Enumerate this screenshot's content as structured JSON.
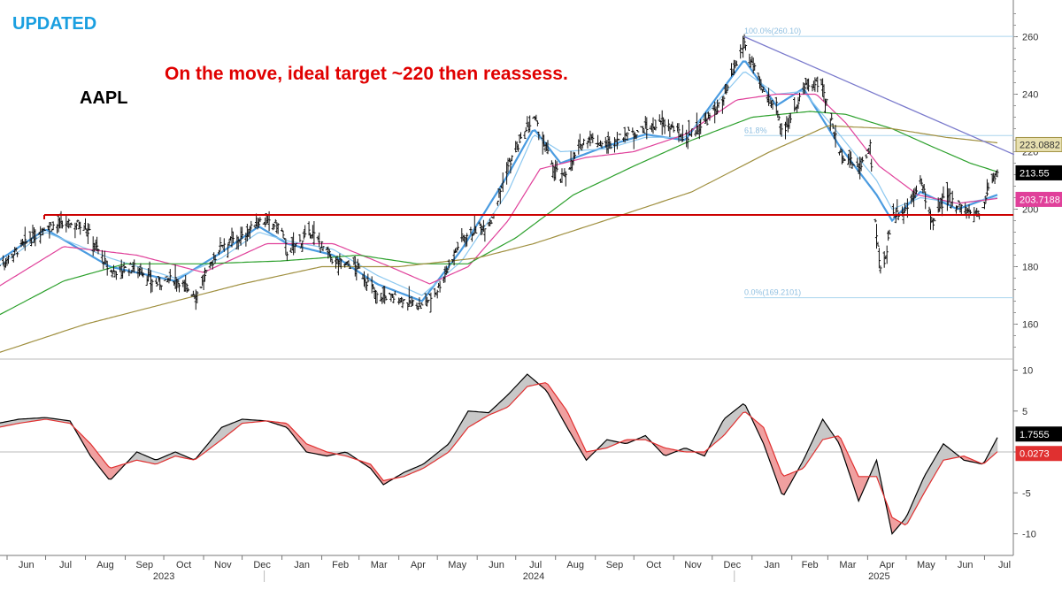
{
  "header": {
    "badge": "UPDATED",
    "ticker": "AAPL",
    "annotation": "On the move, ideal target ~220 then reassess."
  },
  "chart_data": [
    {
      "type": "line",
      "title": "AAPL",
      "x_axis": {
        "type": "date",
        "month_ticks": [
          {
            "date": "2023-06-01",
            "label": "Jun"
          },
          {
            "date": "2023-07-01",
            "label": "Jul"
          },
          {
            "date": "2023-08-01",
            "label": "Aug"
          },
          {
            "date": "2023-09-01",
            "label": "Sep"
          },
          {
            "date": "2023-10-01",
            "label": "Oct"
          },
          {
            "date": "2023-11-01",
            "label": "Nov"
          },
          {
            "date": "2023-12-01",
            "label": "Dec"
          },
          {
            "date": "2024-01-01",
            "label": "Jan"
          },
          {
            "date": "2024-02-01",
            "label": "Feb"
          },
          {
            "date": "2024-03-01",
            "label": "Mar"
          },
          {
            "date": "2024-04-01",
            "label": "Apr"
          },
          {
            "date": "2024-05-01",
            "label": "May"
          },
          {
            "date": "2024-06-01",
            "label": "Jun"
          },
          {
            "date": "2024-07-01",
            "label": "Jul"
          },
          {
            "date": "2024-08-01",
            "label": "Aug"
          },
          {
            "date": "2024-09-01",
            "label": "Sep"
          },
          {
            "date": "2024-10-01",
            "label": "Oct"
          },
          {
            "date": "2024-11-01",
            "label": "Nov"
          },
          {
            "date": "2024-12-01",
            "label": "Dec"
          },
          {
            "date": "2025-01-01",
            "label": "Jan"
          },
          {
            "date": "2025-02-01",
            "label": "Feb"
          },
          {
            "date": "2025-03-01",
            "label": "Mar"
          },
          {
            "date": "2025-04-01",
            "label": "Apr"
          },
          {
            "date": "2025-05-01",
            "label": "May"
          },
          {
            "date": "2025-06-01",
            "label": "Jun"
          },
          {
            "date": "2025-07-01",
            "label": "Jul"
          }
        ],
        "year_labels": [
          {
            "date": "2023-10-01",
            "label": "2023"
          },
          {
            "date": "2024-07-15",
            "label": "2024"
          },
          {
            "date": "2025-04-10",
            "label": "2025"
          }
        ]
      },
      "y_axis": {
        "ticks": [
          160,
          180,
          200,
          220,
          240,
          260
        ],
        "ylim": [
          150,
          272
        ]
      },
      "levels": [
        {
          "name": "horizontal support",
          "value": 198,
          "color": "#cc0000"
        }
      ],
      "fib_levels": [
        {
          "label": "100.0%(260.10)",
          "value": 260.1,
          "from": "2024-12-26"
        },
        {
          "label": "61.8%",
          "value": 225.6,
          "from": "2024-12-26"
        },
        {
          "label": "0.0%(169.2101)",
          "value": 169.21,
          "from": "2024-12-26"
        }
      ],
      "trendline": {
        "from": {
          "date": "2024-12-26",
          "value": 260
        },
        "to": {
          "date": "2025-07-24",
          "value": 219
        },
        "color": "#7a7acc"
      },
      "price": {
        "dates": [
          "2023-05-25",
          "2023-06-15",
          "2023-07-01",
          "2023-07-31",
          "2023-08-20",
          "2023-09-10",
          "2023-09-25",
          "2023-10-10",
          "2023-10-26",
          "2023-11-15",
          "2023-12-01",
          "2023-12-14",
          "2023-12-31",
          "2024-01-05",
          "2024-01-24",
          "2024-02-10",
          "2024-02-28",
          "2024-03-15",
          "2024-04-01",
          "2024-04-19",
          "2024-05-01",
          "2024-05-20",
          "2024-06-05",
          "2024-06-12",
          "2024-06-25",
          "2024-07-15",
          "2024-07-25",
          "2024-08-05",
          "2024-08-25",
          "2024-09-10",
          "2024-09-25",
          "2024-10-10",
          "2024-10-25",
          "2024-11-10",
          "2024-11-25",
          "2024-12-10",
          "2024-12-26",
          "2025-01-05",
          "2025-01-10",
          "2025-01-20",
          "2025-01-25",
          "2025-02-10",
          "2025-02-24",
          "2025-03-10",
          "2025-03-25",
          "2025-04-03",
          "2025-04-08",
          "2025-04-12",
          "2025-04-20",
          "2025-05-01",
          "2025-05-12",
          "2025-05-22",
          "2025-06-01",
          "2025-06-10",
          "2025-06-20",
          "2025-06-30",
          "2025-07-04",
          "2025-07-11"
        ],
        "values": [
          180,
          188,
          194,
          195,
          178,
          180,
          174,
          176,
          170,
          188,
          190,
          196,
          194,
          185,
          192,
          182,
          180,
          170,
          169,
          166,
          172,
          190,
          194,
          196,
          215,
          232,
          220,
          210,
          225,
          222,
          226,
          228,
          230,
          225,
          230,
          238,
          258,
          246,
          240,
          236,
          226,
          242,
          244,
          220,
          214,
          222,
          190,
          175,
          198,
          200,
          210,
          195,
          205,
          202,
          198,
          200,
          208,
          213.55
        ]
      },
      "series": [
        {
          "name": "",
          "color": "#4a9be0",
          "last_value": null,
          "dates": [
            "2023-05-25",
            "2023-07-01",
            "2023-08-20",
            "2023-10-10",
            "2023-11-15",
            "2023-12-14",
            "2024-01-05",
            "2024-02-10",
            "2024-03-15",
            "2024-04-19",
            "2024-05-20",
            "2024-06-25",
            "2024-07-15",
            "2024-08-05",
            "2024-09-10",
            "2024-10-10",
            "2024-11-10",
            "2024-12-26",
            "2025-01-20",
            "2025-02-10",
            "2025-03-10",
            "2025-04-08",
            "2025-04-20",
            "2025-05-12",
            "2025-06-10",
            "2025-07-11"
          ],
          "values": [
            182,
            193,
            180,
            175,
            185,
            194,
            188,
            184,
            174,
            168,
            186,
            212,
            228,
            216,
            222,
            226,
            224,
            252,
            236,
            242,
            222,
            205,
            196,
            206,
            200,
            205
          ]
        },
        {
          "name": "",
          "color": "#8cc8f0",
          "last_value": null,
          "dates": [
            "2023-05-25",
            "2023-07-01",
            "2023-08-20",
            "2023-10-10",
            "2023-11-15",
            "2023-12-14",
            "2024-01-05",
            "2024-02-10",
            "2024-03-15",
            "2024-04-19",
            "2024-05-20",
            "2024-06-25",
            "2024-07-15",
            "2024-08-05",
            "2024-09-10",
            "2024-10-10",
            "2024-11-10",
            "2024-12-26",
            "2025-01-20",
            "2025-02-10",
            "2025-03-10",
            "2025-04-08",
            "2025-04-20",
            "2025-05-12",
            "2025-06-10",
            "2025-07-11"
          ],
          "values": [
            180,
            192,
            183,
            176,
            183,
            192,
            189,
            186,
            177,
            170,
            182,
            206,
            226,
            220,
            221,
            225,
            225,
            248,
            240,
            241,
            226,
            210,
            200,
            204,
            202,
            204
          ]
        },
        {
          "name": "",
          "color": "#e0409a",
          "last_value": 203.7188,
          "dates": [
            "2023-05-25",
            "2023-07-15",
            "2023-09-10",
            "2023-11-01",
            "2023-12-20",
            "2024-02-10",
            "2024-03-25",
            "2024-04-25",
            "2024-05-25",
            "2024-06-25",
            "2024-07-20",
            "2024-08-25",
            "2024-10-01",
            "2024-11-10",
            "2024-12-20",
            "2025-01-20",
            "2025-02-20",
            "2025-03-15",
            "2025-04-10",
            "2025-05-10",
            "2025-06-10",
            "2025-07-11"
          ],
          "values": [
            173,
            187,
            184,
            178,
            188,
            188,
            180,
            174,
            180,
            196,
            214,
            218,
            220,
            226,
            238,
            240,
            240,
            230,
            215,
            205,
            202,
            203.72
          ]
        },
        {
          "name": "",
          "color": "#2ca02c",
          "last_value": null,
          "dates": [
            "2023-05-25",
            "2023-07-15",
            "2023-09-01",
            "2023-11-01",
            "2024-01-01",
            "2024-03-01",
            "2024-04-15",
            "2024-05-25",
            "2024-07-01",
            "2024-08-15",
            "2024-10-01",
            "2024-11-15",
            "2025-01-01",
            "2025-02-15",
            "2025-03-15",
            "2025-04-20",
            "2025-05-20",
            "2025-06-20",
            "2025-07-11"
          ],
          "values": [
            163,
            175,
            181,
            181,
            182,
            184,
            181,
            181,
            190,
            205,
            215,
            224,
            232,
            234,
            233,
            228,
            222,
            216,
            213
          ]
        },
        {
          "name": "",
          "color": "#a09040",
          "last_value": 223.0882,
          "dates": [
            "2023-05-25",
            "2023-08-01",
            "2023-10-01",
            "2023-12-01",
            "2024-02-01",
            "2024-04-01",
            "2024-06-01",
            "2024-07-15",
            "2024-09-15",
            "2024-11-15",
            "2025-01-15",
            "2025-03-01",
            "2025-04-20",
            "2025-06-01",
            "2025-07-11"
          ],
          "values": [
            150,
            160,
            167,
            174,
            180,
            180,
            183,
            188,
            197,
            206,
            220,
            229,
            228,
            225,
            223.09
          ]
        }
      ],
      "last_price_label": 213.55
    },
    {
      "type": "line",
      "title": "",
      "y_axis": {
        "ticks": [
          -10,
          -5,
          0,
          5,
          10
        ],
        "ylim": [
          -12,
          11
        ]
      },
      "series": [
        {
          "name": "",
          "color": "#000000",
          "last_value": 1.7555,
          "dates": [
            "2023-05-25",
            "2023-06-10",
            "2023-07-01",
            "2023-07-20",
            "2023-08-05",
            "2023-08-20",
            "2023-09-10",
            "2023-09-25",
            "2023-10-10",
            "2023-10-25",
            "2023-11-15",
            "2023-12-01",
            "2023-12-20",
            "2024-01-05",
            "2024-01-20",
            "2024-02-05",
            "2024-02-20",
            "2024-03-10",
            "2024-03-20",
            "2024-04-05",
            "2024-04-20",
            "2024-05-10",
            "2024-05-25",
            "2024-06-10",
            "2024-06-25",
            "2024-07-10",
            "2024-07-25",
            "2024-08-10",
            "2024-08-25",
            "2024-09-10",
            "2024-09-25",
            "2024-10-10",
            "2024-10-25",
            "2024-11-10",
            "2024-11-25",
            "2024-12-10",
            "2024-12-26",
            "2025-01-10",
            "2025-01-25",
            "2025-02-10",
            "2025-02-25",
            "2025-03-10",
            "2025-03-25",
            "2025-04-08",
            "2025-04-20",
            "2025-05-01",
            "2025-05-15",
            "2025-05-30",
            "2025-06-15",
            "2025-06-30",
            "2025-07-11"
          ],
          "values": [
            3.5,
            4,
            4.2,
            3.8,
            -0.5,
            -3.5,
            0,
            -1,
            0,
            -1,
            3,
            4,
            3.8,
            3,
            0,
            -0.5,
            0,
            -2,
            -4,
            -2.5,
            -1.5,
            1,
            5,
            4.8,
            7,
            9.5,
            7.5,
            3,
            -1,
            1.5,
            1,
            2,
            -0.5,
            0.5,
            -0.5,
            4,
            6,
            1,
            -5.5,
            -1,
            4,
            1,
            -6,
            -1,
            -10,
            -8,
            -3,
            1,
            -1,
            -1.5,
            1.76
          ]
        },
        {
          "name": "",
          "color": "#e03030",
          "last_value": 0.0273,
          "dates": [
            "2023-05-25",
            "2023-06-10",
            "2023-07-01",
            "2023-07-20",
            "2023-08-05",
            "2023-08-20",
            "2023-09-10",
            "2023-09-25",
            "2023-10-10",
            "2023-10-25",
            "2023-11-15",
            "2023-12-01",
            "2023-12-20",
            "2024-01-05",
            "2024-01-20",
            "2024-02-05",
            "2024-02-20",
            "2024-03-10",
            "2024-03-20",
            "2024-04-05",
            "2024-04-20",
            "2024-05-10",
            "2024-05-25",
            "2024-06-10",
            "2024-06-25",
            "2024-07-10",
            "2024-07-25",
            "2024-08-10",
            "2024-08-25",
            "2024-09-10",
            "2024-09-25",
            "2024-10-10",
            "2024-10-25",
            "2024-11-10",
            "2024-11-25",
            "2024-12-10",
            "2024-12-26",
            "2025-01-10",
            "2025-01-25",
            "2025-02-10",
            "2025-02-25",
            "2025-03-10",
            "2025-03-25",
            "2025-04-08",
            "2025-04-20",
            "2025-05-01",
            "2025-05-15",
            "2025-05-30",
            "2025-06-15",
            "2025-06-30",
            "2025-07-11"
          ],
          "values": [
            3,
            3.5,
            4,
            3.5,
            1,
            -2,
            -1,
            -1.5,
            -0.5,
            -1,
            1.5,
            3.5,
            3.8,
            3.5,
            1,
            0,
            -0.5,
            -1.5,
            -3.5,
            -3,
            -2,
            0,
            3,
            4.5,
            5.5,
            8,
            8.5,
            5,
            0,
            0.5,
            1.5,
            1.5,
            0.5,
            0,
            0,
            2,
            5,
            3,
            -3,
            -2,
            1.5,
            2,
            -3,
            -3,
            -8,
            -9,
            -5,
            -1,
            -0.5,
            -1.5,
            0.03
          ]
        }
      ]
    }
  ]
}
